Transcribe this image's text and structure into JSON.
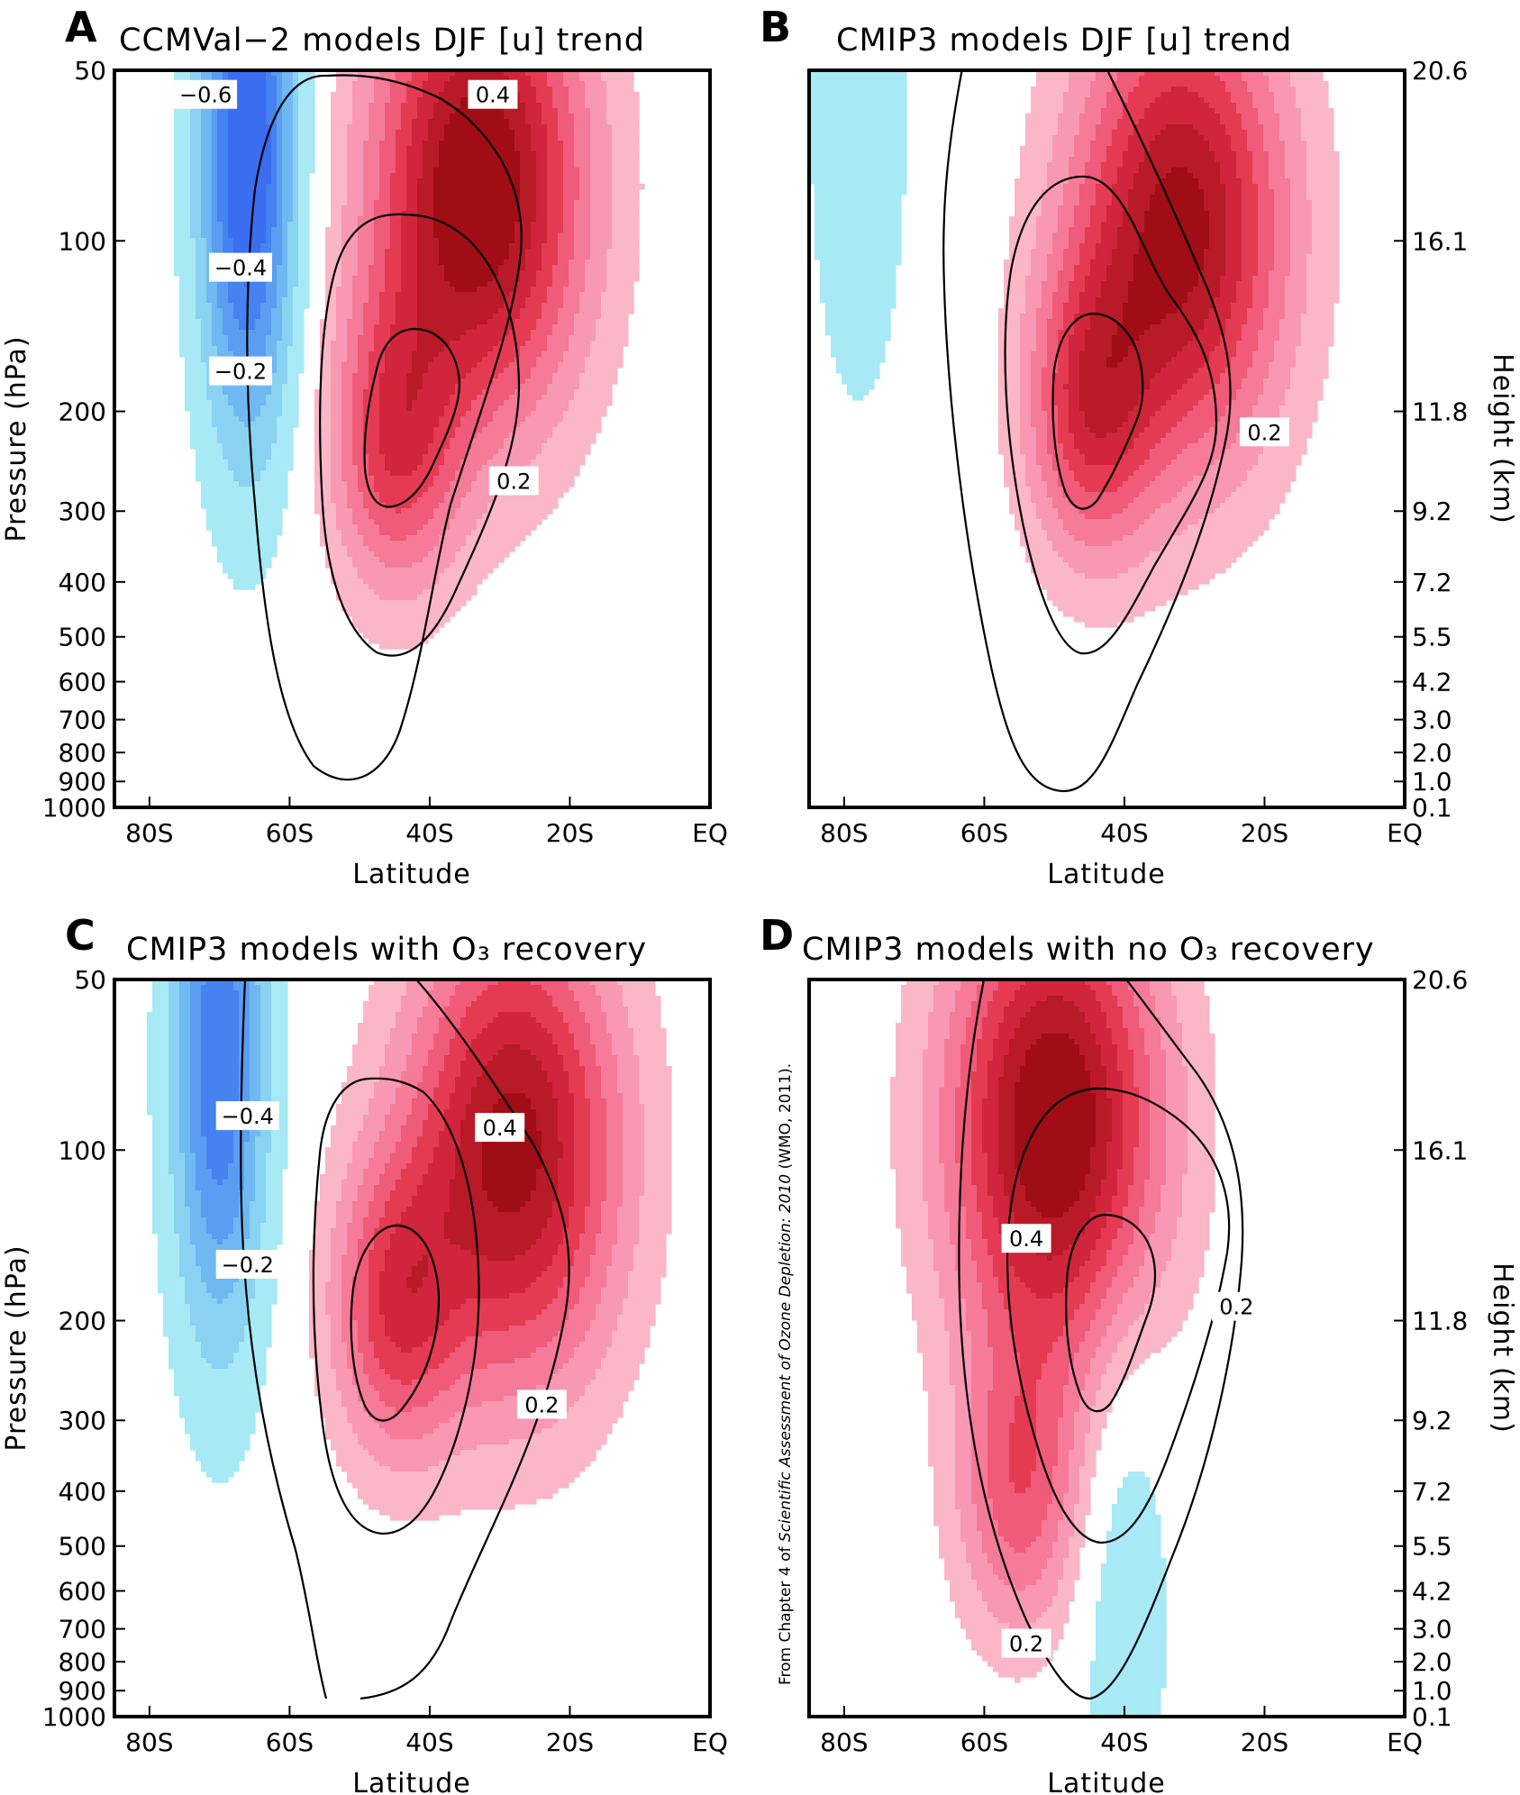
{
  "figure": {
    "credit_prefix": "From Chapter 4 of ",
    "credit_italic": "Scientific Assessment of Ozone Depletion: 2010",
    "credit_suffix": " (WMO, 2011)."
  },
  "colors": {
    "pos": [
      "#fbb6c8",
      "#f898b2",
      "#f57b98",
      "#ef5b78",
      "#e43b53",
      "#d0253a",
      "#b81a28",
      "#a00d14"
    ],
    "neg": [
      "#a7e9f5",
      "#8ad2f2",
      "#6fb8f2",
      "#5a9df2",
      "#4682f0",
      "#3a6df0"
    ],
    "contour": "#000000"
  },
  "chart_data": [
    {
      "type": "heatmap",
      "panel": "A",
      "title": "CCMVal−2 models DJF [u] trend",
      "xlabel": "Latitude",
      "ylabel": "Pressure (hPa)",
      "y2label": "",
      "xticks": [
        "80S",
        "60S",
        "40S",
        "20S",
        "EQ"
      ],
      "yticks": [
        "50",
        "100",
        "200",
        "300",
        "400",
        "500",
        "600",
        "700",
        "800",
        "900",
        "1000"
      ],
      "y2ticks": [],
      "xlim": [
        "85S",
        "EQ"
      ],
      "ylim": [
        1000,
        50
      ],
      "pos_jet": {
        "lat": -33,
        "p": 80,
        "peak": 0.55
      },
      "pos_low": {
        "lat": -45,
        "p": 230,
        "peak": 0.3
      },
      "neg_jet": {
        "lat": -66,
        "p": 70,
        "peak": -0.7
      },
      "contour_jet": {
        "lat": -47,
        "p": 300
      },
      "contour_levels": [
        {
          "value": "−0.6",
          "lat": -72,
          "p": 52
        },
        {
          "value": "0.4",
          "lat": -31,
          "p": 52
        },
        {
          "value": "−0.4",
          "lat": -67,
          "p": 105
        },
        {
          "value": "−0.2",
          "lat": -67,
          "p": 160
        },
        {
          "value": "0.2",
          "lat": -28,
          "p": 250
        }
      ]
    },
    {
      "type": "heatmap",
      "panel": "B",
      "title": "CMIP3 models DJF [u] trend",
      "xlabel": "Latitude",
      "ylabel": "",
      "y2label": "Height (km)",
      "xticks": [
        "80S",
        "60S",
        "40S",
        "20S",
        "EQ"
      ],
      "yticks": [],
      "y2ticks": [
        "20.6",
        "16.1",
        "11.8",
        "9.2",
        "7.2",
        "5.5",
        "4.2",
        "3.0",
        "2.0",
        "1.0",
        "0.1"
      ],
      "xlim": [
        "85S",
        "EQ"
      ],
      "ylim": [
        1000,
        50
      ],
      "pos_jet": {
        "lat": -32,
        "p": 95,
        "peak": 0.5
      },
      "pos_low": {
        "lat": -45,
        "p": 200,
        "peak": 0.3
      },
      "neg_jet": {
        "lat": -78,
        "p": 60,
        "peak": -0.15
      },
      "contour_jet": {
        "lat": -45,
        "p": 300
      },
      "contour_levels": [
        {
          "value": "0.2",
          "lat": -20,
          "p": 205
        }
      ]
    },
    {
      "type": "heatmap",
      "panel": "C",
      "title": "CMIP3 models with O₃ recovery",
      "xlabel": "Latitude",
      "ylabel": "Pressure (hPa)",
      "y2label": "",
      "xticks": [
        "80S",
        "60S",
        "40S",
        "20S",
        "EQ"
      ],
      "yticks": [
        "50",
        "100",
        "200",
        "300",
        "400",
        "500",
        "600",
        "700",
        "800",
        "900",
        "1000"
      ],
      "y2ticks": [],
      "xlim": [
        "85S",
        "EQ"
      ],
      "ylim": [
        1000,
        50
      ],
      "pos_jet": {
        "lat": -28,
        "p": 100,
        "peak": 0.5
      },
      "pos_low": {
        "lat": -45,
        "p": 190,
        "peak": 0.3
      },
      "neg_jet": {
        "lat": -70,
        "p": 70,
        "peak": -0.55
      },
      "contour_jet": {
        "lat": -45,
        "p": 300
      },
      "contour_levels": [
        {
          "value": "−0.4",
          "lat": -66,
          "p": 82
        },
        {
          "value": "0.4",
          "lat": -30,
          "p": 86
        },
        {
          "value": "−0.2",
          "lat": -66,
          "p": 150
        },
        {
          "value": "0.2",
          "lat": -24,
          "p": 265
        }
      ]
    },
    {
      "type": "heatmap",
      "panel": "D",
      "title": "CMIP3 models with no O₃ recovery",
      "xlabel": "Latitude",
      "ylabel": "",
      "y2label": "Height (km)",
      "xticks": [
        "80S",
        "60S",
        "40S",
        "20S",
        "EQ"
      ],
      "yticks": [],
      "y2ticks": [
        "20.6",
        "16.1",
        "11.8",
        "9.2",
        "7.2",
        "5.5",
        "4.2",
        "3.0",
        "2.0",
        "1.0",
        "0.1"
      ],
      "xlim": [
        "85S",
        "EQ"
      ],
      "ylim": [
        1000,
        50
      ],
      "pos_jet": {
        "lat": -50,
        "p": 90,
        "peak": 0.55
      },
      "pos_low": {
        "lat": -55,
        "p": 400,
        "peak": 0.25
      },
      "neg_jet": {
        "lat": -40,
        "p": 600,
        "peak": -0.12
      },
      "contour_jet": {
        "lat": -43,
        "p": 320
      },
      "contour_levels": [
        {
          "value": "0.4",
          "lat": -54,
          "p": 135
        },
        {
          "value": "0.2",
          "lat": -24,
          "p": 178
        },
        {
          "value": "0.2",
          "lat": -54,
          "p": 700
        }
      ]
    }
  ]
}
